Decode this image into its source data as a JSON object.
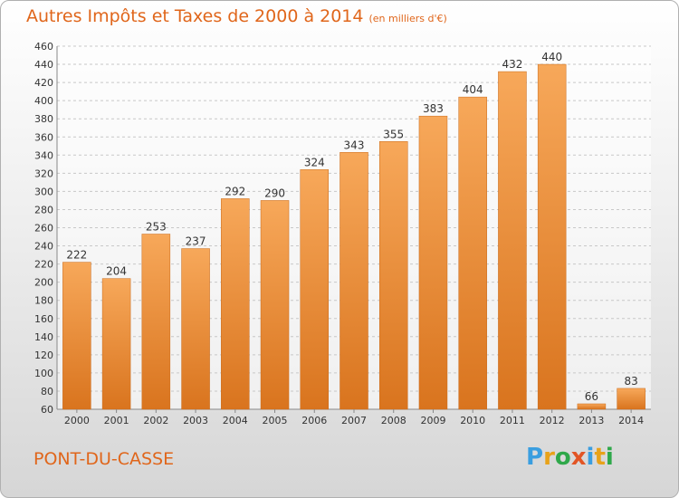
{
  "title": "Autres Impôts et Taxes de 2000 à 2014",
  "unit": "(en milliers d'€)",
  "city": "PONT-DU-CASSE",
  "logo": {
    "letters": [
      "P",
      "r",
      "o",
      "x",
      "i",
      "t",
      "i"
    ]
  },
  "colors": {
    "bar_light": "#f7a85a",
    "bar_dark": "#d9741e",
    "title": "#e0661b"
  },
  "chart_data": {
    "type": "bar",
    "categories": [
      "2000",
      "2001",
      "2002",
      "2003",
      "2004",
      "2005",
      "2006",
      "2007",
      "2008",
      "2009",
      "2010",
      "2011",
      "2012",
      "2013",
      "2014"
    ],
    "values": [
      222,
      204,
      253,
      237,
      292,
      290,
      324,
      343,
      355,
      383,
      404,
      432,
      440,
      66,
      83
    ],
    "ylim": [
      60,
      460
    ],
    "yticks": [
      60,
      80,
      100,
      120,
      140,
      160,
      180,
      200,
      220,
      240,
      260,
      280,
      300,
      320,
      340,
      360,
      380,
      400,
      420,
      440,
      460
    ],
    "grid": "horizontal dashed",
    "xlabel": "",
    "ylabel": ""
  }
}
